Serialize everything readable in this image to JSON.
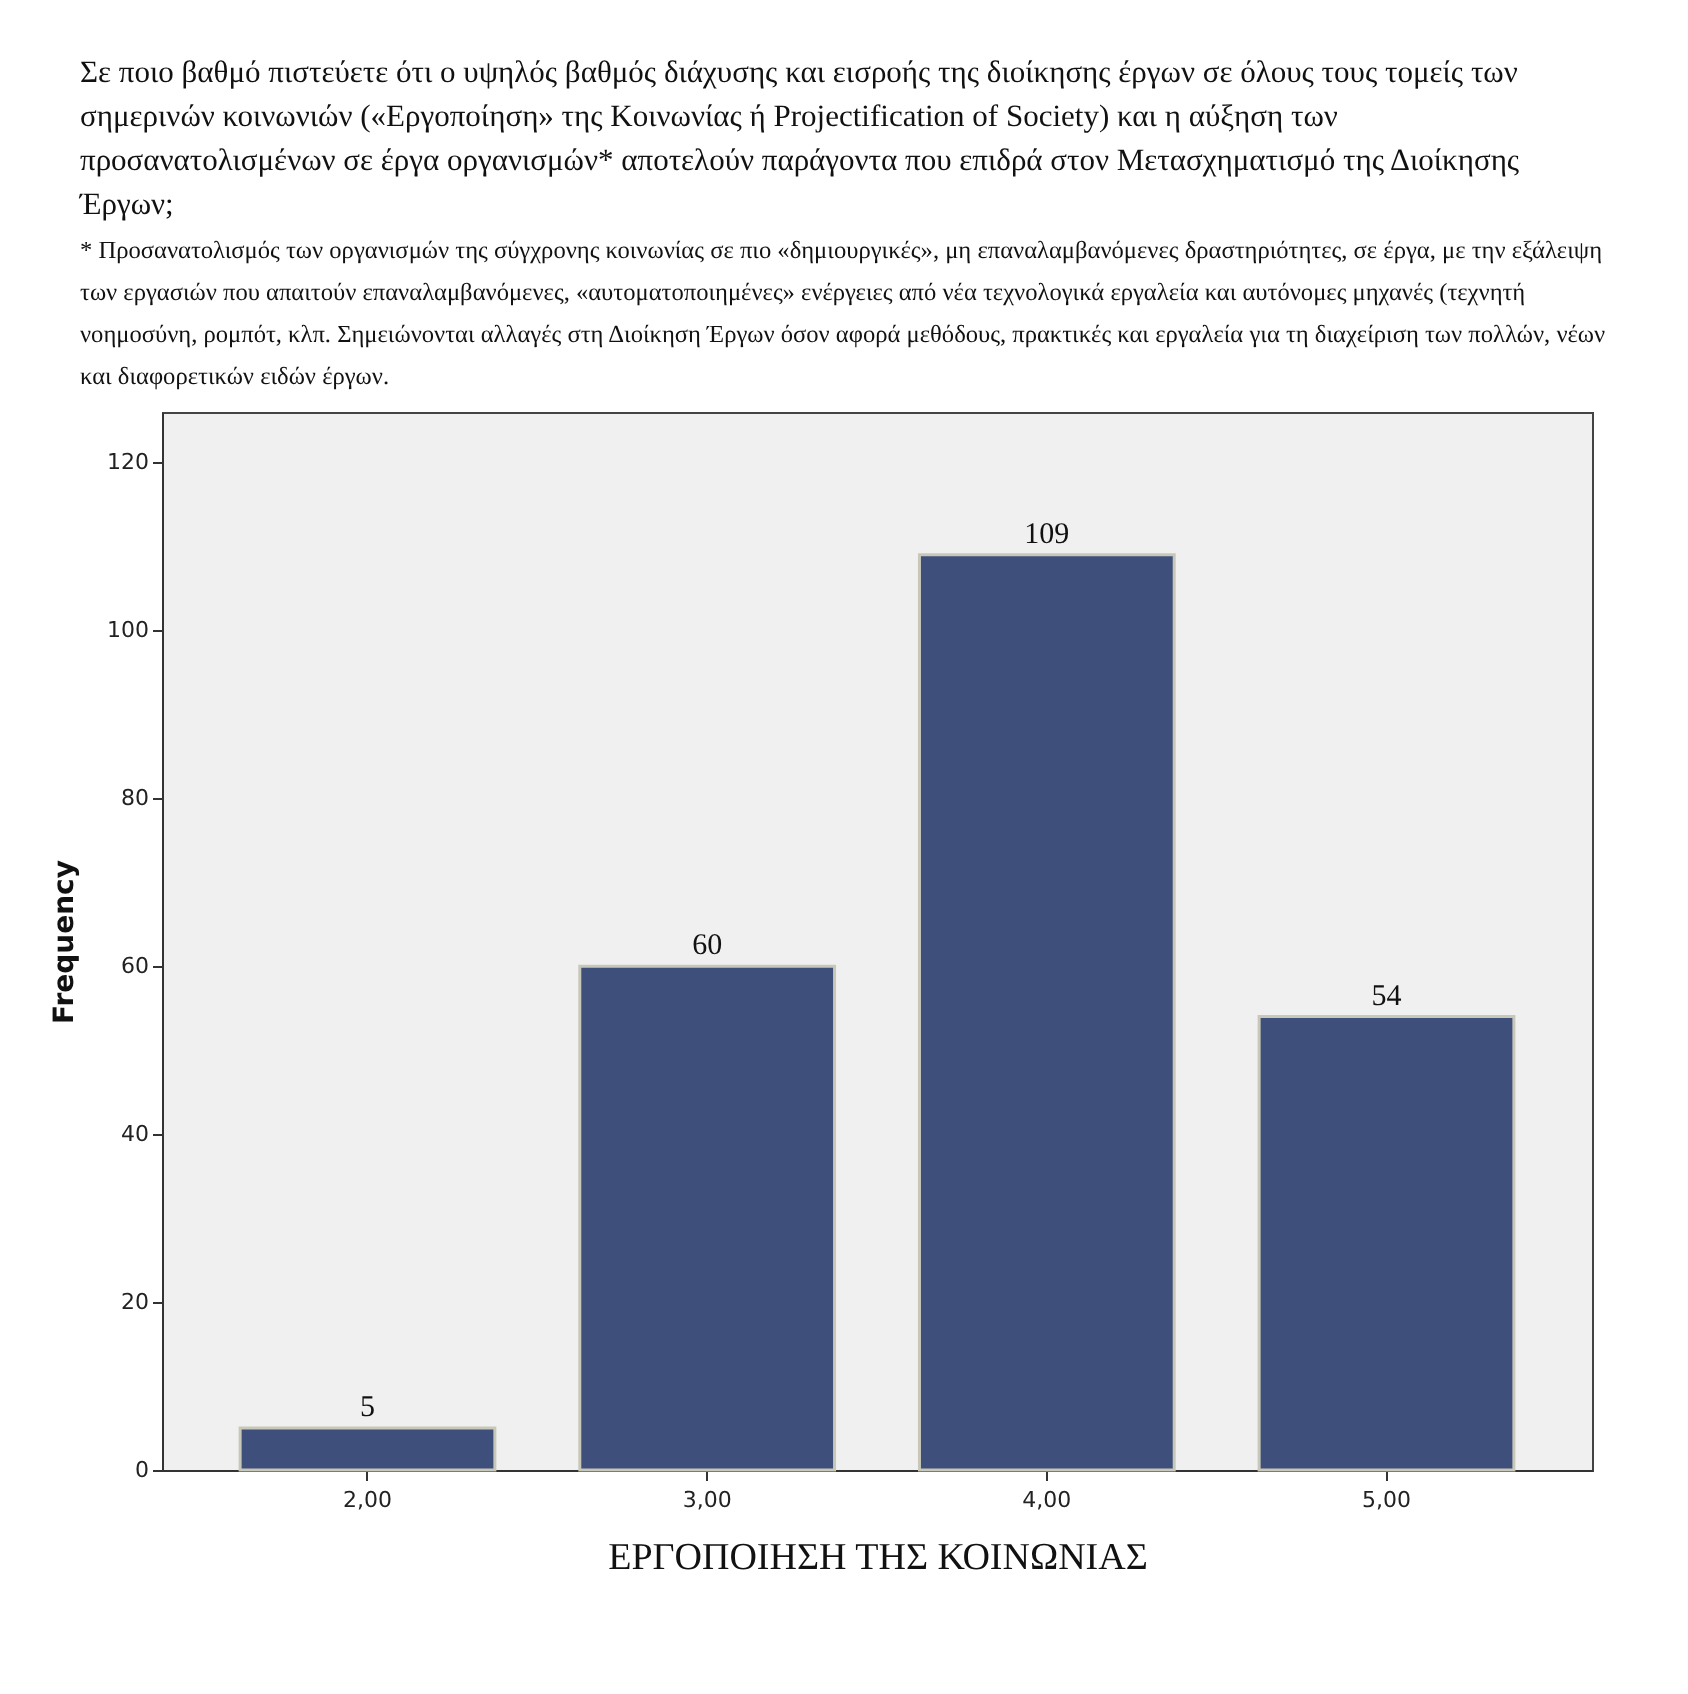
{
  "chart_data": {
    "type": "bar",
    "title": "Σε ποιο βαθμό πιστεύετε ότι ο υψηλός βαθμός διάχυσης και εισροής της διοίκησης έργων σε όλους τους τομείς των σημερινών κοινωνιών («Εργοποίηση» της Κοινωνίας ή Projectification of Society) και η αύξηση των προσανατολισμένων σε έργα οργανισμών* αποτελούν παράγοντα που επιδρά στον Μετασχηματισμό της Διοίκησης Έργων;",
    "subtitle": "* Προσανατολισμός των οργανισμών της σύγχρονης κοινωνίας σε πιο «δημιουργικές», μη επαναλαμβανόμενες δραστηριότητες, σε έργα, με την εξάλειψη των εργασιών που απαιτούν επαναλαμβανόμενες, «αυτοματοποιημένες» ενέργειες από νέα τεχνολογικά εργαλεία και αυτόνομες μηχανές (τεχνητή νοημοσύνη, ρομπότ, κλπ. Σημειώνονται αλλαγές στη Διοίκηση Έργων όσον αφορά μεθόδους, πρακτικές και εργαλεία για τη διαχείριση των πολλών, νέων και διαφορετικών ειδών έργων.",
    "xlabel": "ΕΡΓΟΠΟΙΗΣΗ ΤΗΣ ΚΟΙΝΩΝΙΑΣ",
    "ylabel": "Frequency",
    "categories": [
      "2,00",
      "3,00",
      "4,00",
      "5,00"
    ],
    "values": [
      5,
      60,
      109,
      54
    ],
    "color": "#3e4f7c",
    "ylim": [
      0,
      126
    ],
    "yticks": [
      0,
      20,
      40,
      60,
      80,
      100,
      120
    ],
    "data_labels": true,
    "grid": false
  }
}
